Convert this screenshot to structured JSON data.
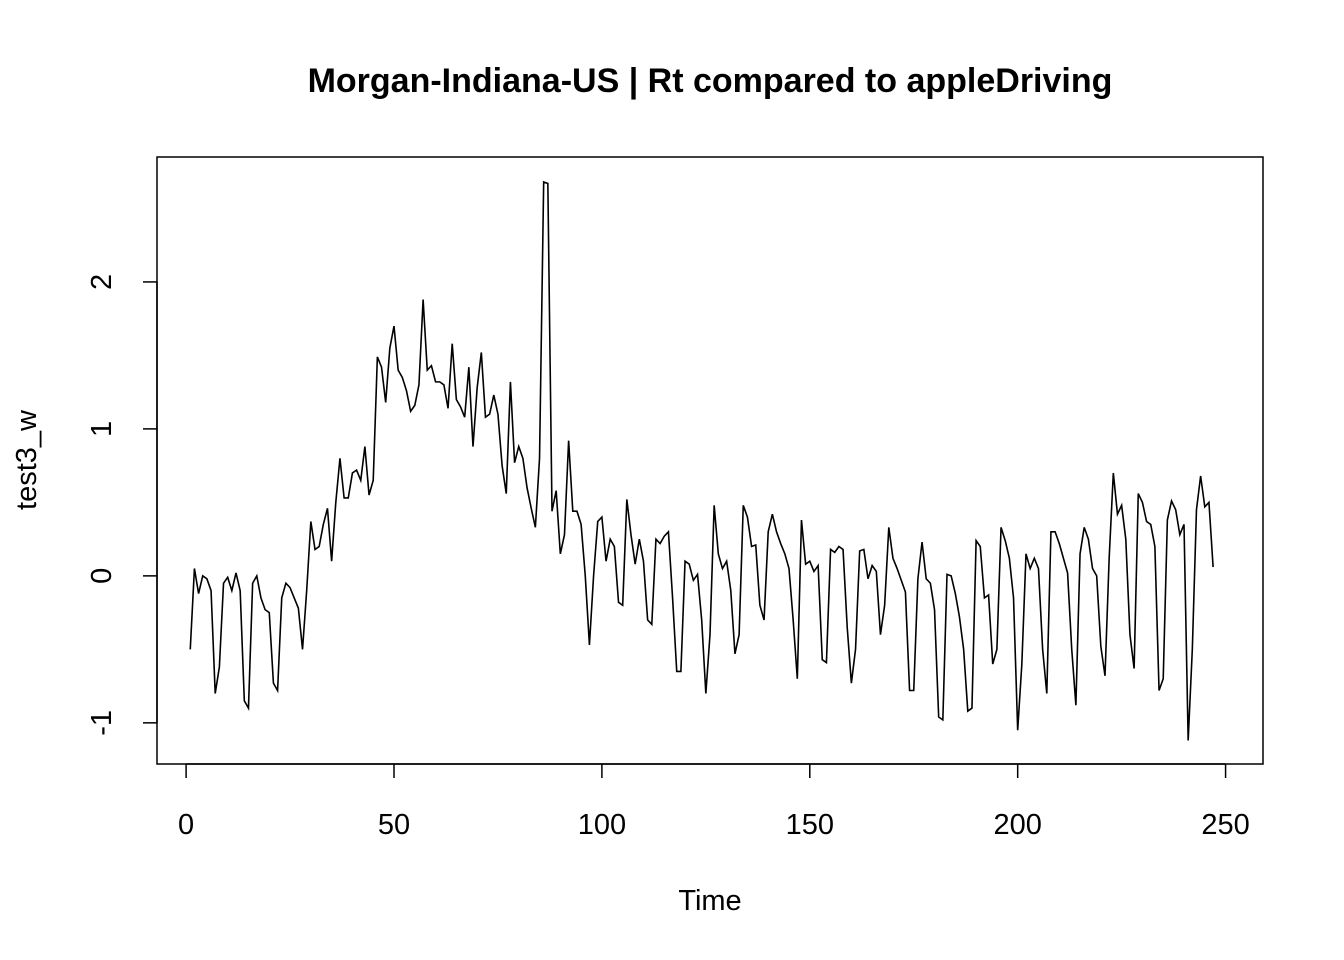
{
  "chart_data": {
    "type": "line",
    "title": "Morgan-Indiana-US | Rt compared to appleDriving",
    "xlabel": "Time",
    "ylabel": "test3_w",
    "xlim": [
      -7,
      259
    ],
    "ylim": [
      -1.28,
      2.85
    ],
    "xticks": [
      0,
      50,
      100,
      150,
      200,
      250
    ],
    "yticks": [
      -1,
      0,
      1,
      2
    ],
    "grid": false,
    "colors": {
      "line": "#000000",
      "frame": "#000000",
      "background": "#ffffff"
    },
    "series": [
      {
        "name": "test3_w",
        "x_start": 1,
        "x_step": 1,
        "values": [
          -0.5,
          0.05,
          -0.12,
          0.0,
          -0.02,
          -0.1,
          -0.8,
          -0.62,
          -0.05,
          -0.01,
          -0.1,
          0.02,
          -0.1,
          -0.85,
          -0.9,
          -0.05,
          0.0,
          -0.15,
          -0.23,
          -0.25,
          -0.73,
          -0.78,
          -0.15,
          -0.05,
          -0.08,
          -0.15,
          -0.22,
          -0.5,
          -0.1,
          0.37,
          0.18,
          0.2,
          0.35,
          0.46,
          0.1,
          0.5,
          0.8,
          0.53,
          0.53,
          0.7,
          0.72,
          0.65,
          0.88,
          0.55,
          0.65,
          1.49,
          1.42,
          1.18,
          1.55,
          1.7,
          1.4,
          1.35,
          1.26,
          1.12,
          1.16,
          1.3,
          1.88,
          1.4,
          1.43,
          1.32,
          1.32,
          1.3,
          1.14,
          1.58,
          1.2,
          1.15,
          1.08,
          1.42,
          0.88,
          1.28,
          1.52,
          1.08,
          1.1,
          1.23,
          1.1,
          0.75,
          0.56,
          1.32,
          0.77,
          0.88,
          0.8,
          0.6,
          0.46,
          0.33,
          0.8,
          2.68,
          2.67,
          0.44,
          0.58,
          0.15,
          0.28,
          0.92,
          0.44,
          0.44,
          0.35,
          0.0,
          -0.47,
          0.0,
          0.37,
          0.4,
          0.1,
          0.25,
          0.2,
          -0.18,
          -0.2,
          0.52,
          0.28,
          0.08,
          0.25,
          0.1,
          -0.3,
          -0.33,
          0.25,
          0.22,
          0.27,
          0.3,
          -0.15,
          -0.65,
          -0.65,
          0.1,
          0.08,
          -0.03,
          0.01,
          -0.3,
          -0.8,
          -0.4,
          0.48,
          0.15,
          0.05,
          0.1,
          -0.1,
          -0.53,
          -0.4,
          0.48,
          0.4,
          0.2,
          0.21,
          -0.2,
          -0.3,
          0.3,
          0.42,
          0.3,
          0.22,
          0.15,
          0.05,
          -0.3,
          -0.7,
          0.38,
          0.08,
          0.1,
          0.03,
          0.07,
          -0.57,
          -0.59,
          0.18,
          0.16,
          0.2,
          0.18,
          -0.35,
          -0.73,
          -0.5,
          0.17,
          0.18,
          -0.02,
          0.07,
          0.03,
          -0.4,
          -0.2,
          0.33,
          0.12,
          0.05,
          -0.03,
          -0.11,
          -0.78,
          -0.78,
          -0.02,
          0.23,
          -0.02,
          -0.05,
          -0.23,
          -0.96,
          -0.98,
          0.01,
          0.0,
          -0.12,
          -0.28,
          -0.5,
          -0.92,
          -0.9,
          0.24,
          0.2,
          -0.15,
          -0.13,
          -0.6,
          -0.5,
          0.33,
          0.24,
          0.12,
          -0.15,
          -1.05,
          -0.6,
          0.15,
          0.05,
          0.12,
          0.05,
          -0.5,
          -0.8,
          0.3,
          0.3,
          0.22,
          0.12,
          0.02,
          -0.5,
          -0.88,
          0.15,
          0.33,
          0.25,
          0.05,
          0.0,
          -0.48,
          -0.68,
          0.12,
          0.7,
          0.42,
          0.48,
          0.25,
          -0.4,
          -0.63,
          0.56,
          0.5,
          0.37,
          0.35,
          0.2,
          -0.78,
          -0.7,
          0.38,
          0.51,
          0.45,
          0.28,
          0.35,
          -1.12,
          -0.5,
          0.45,
          0.68,
          0.47,
          0.5,
          0.06
        ]
      }
    ]
  }
}
